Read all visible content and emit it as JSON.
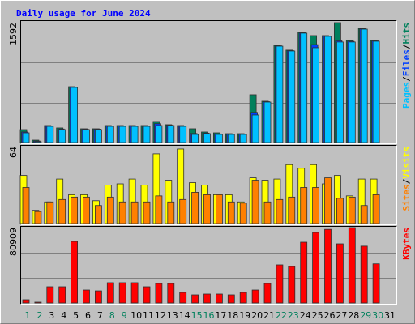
{
  "chart_data": [
    {
      "type": "bar",
      "title": "Daily usage for June 2024",
      "ylim": [
        0,
        1592
      ],
      "yticks": [
        1592
      ],
      "legend_separator": "/",
      "series": [
        {
          "name": "Hits",
          "color": "#00805c",
          "values": [
            172,
            32,
            226,
            194,
            742,
            183,
            183,
            226,
            226,
            226,
            226,
            280,
            237,
            226,
            183,
            140,
            129,
            118,
            118,
            635,
            549,
            1291,
            1227,
            1463,
            1420,
            1420,
            1592,
            1356,
            1517,
            1356,
            null
          ]
        },
        {
          "name": "Files",
          "color": "#0040ff",
          "values": [
            140,
            20,
            220,
            180,
            737,
            178,
            178,
            220,
            220,
            220,
            220,
            250,
            230,
            220,
            120,
            125,
            115,
            112,
            112,
            400,
            543,
            1285,
            1221,
            1458,
            1300,
            1415,
            1350,
            1345,
            1511,
            1350,
            null
          ]
        },
        {
          "name": "Pages",
          "color": "#00c0ff",
          "values": [
            129,
            11,
            215,
            172,
            732,
            172,
            172,
            215,
            215,
            215,
            215,
            226,
            226,
            215,
            108,
            118,
            108,
            108,
            108,
            366,
            538,
            1280,
            1216,
            1453,
            1259,
            1410,
            1335,
            1335,
            1506,
            1345,
            null
          ]
        }
      ]
    },
    {
      "type": "bar",
      "ylim": [
        0,
        64
      ],
      "yticks": [
        64
      ],
      "legend_separator": "/",
      "series": [
        {
          "name": "Visits",
          "color": "#ffff00",
          "values": [
            40,
            11,
            18,
            37,
            24,
            24,
            19,
            32,
            33,
            37,
            32,
            58,
            36,
            62,
            34,
            32,
            24,
            24,
            18,
            38,
            36,
            37,
            49,
            46,
            49,
            33,
            40,
            23,
            37,
            37,
            null
          ]
        },
        {
          "name": "Sites",
          "color": "#ff8000",
          "values": [
            30,
            10,
            18,
            20,
            22,
            22,
            15,
            22,
            18,
            18,
            18,
            23,
            18,
            20,
            26,
            24,
            24,
            18,
            17,
            36,
            18,
            20,
            22,
            30,
            30,
            38,
            21,
            22,
            15,
            24,
            null
          ]
        }
      ]
    },
    {
      "type": "bar",
      "ylim": [
        0,
        80909
      ],
      "yticks": [
        80909
      ],
      "categories": [
        "1",
        "2",
        "3",
        "4",
        "5",
        "6",
        "7",
        "8",
        "9",
        "10",
        "11",
        "12",
        "13",
        "14",
        "15",
        "16",
        "17",
        "18",
        "19",
        "20",
        "21",
        "22",
        "23",
        "24",
        "25",
        "26",
        "27",
        "28",
        "29",
        "30",
        "31"
      ],
      "category_colors": [
        "#00805c",
        "#00805c",
        "#000000",
        "#000000",
        "#000000",
        "#000000",
        "#000000",
        "#00805c",
        "#00805c",
        "#000000",
        "#000000",
        "#000000",
        "#000000",
        "#000000",
        "#00805c",
        "#00805c",
        "#000000",
        "#000000",
        "#000000",
        "#000000",
        "#000000",
        "#00805c",
        "#00805c",
        "#000000",
        "#000000",
        "#000000",
        "#000000",
        "#000000",
        "#00805c",
        "#00805c",
        "#000000"
      ],
      "series": [
        {
          "name": "KBytes",
          "color": "#ff0000",
          "values": [
            3480,
            870,
            17400,
            17400,
            66100,
            13900,
            13000,
            21750,
            21750,
            21750,
            17400,
            20900,
            20900,
            11300,
            8700,
            9570,
            9570,
            8700,
            11300,
            13900,
            20900,
            40900,
            39150,
            65250,
            75700,
            79000,
            63500,
            80909,
            61000,
            42000,
            null
          ]
        }
      ]
    }
  ]
}
